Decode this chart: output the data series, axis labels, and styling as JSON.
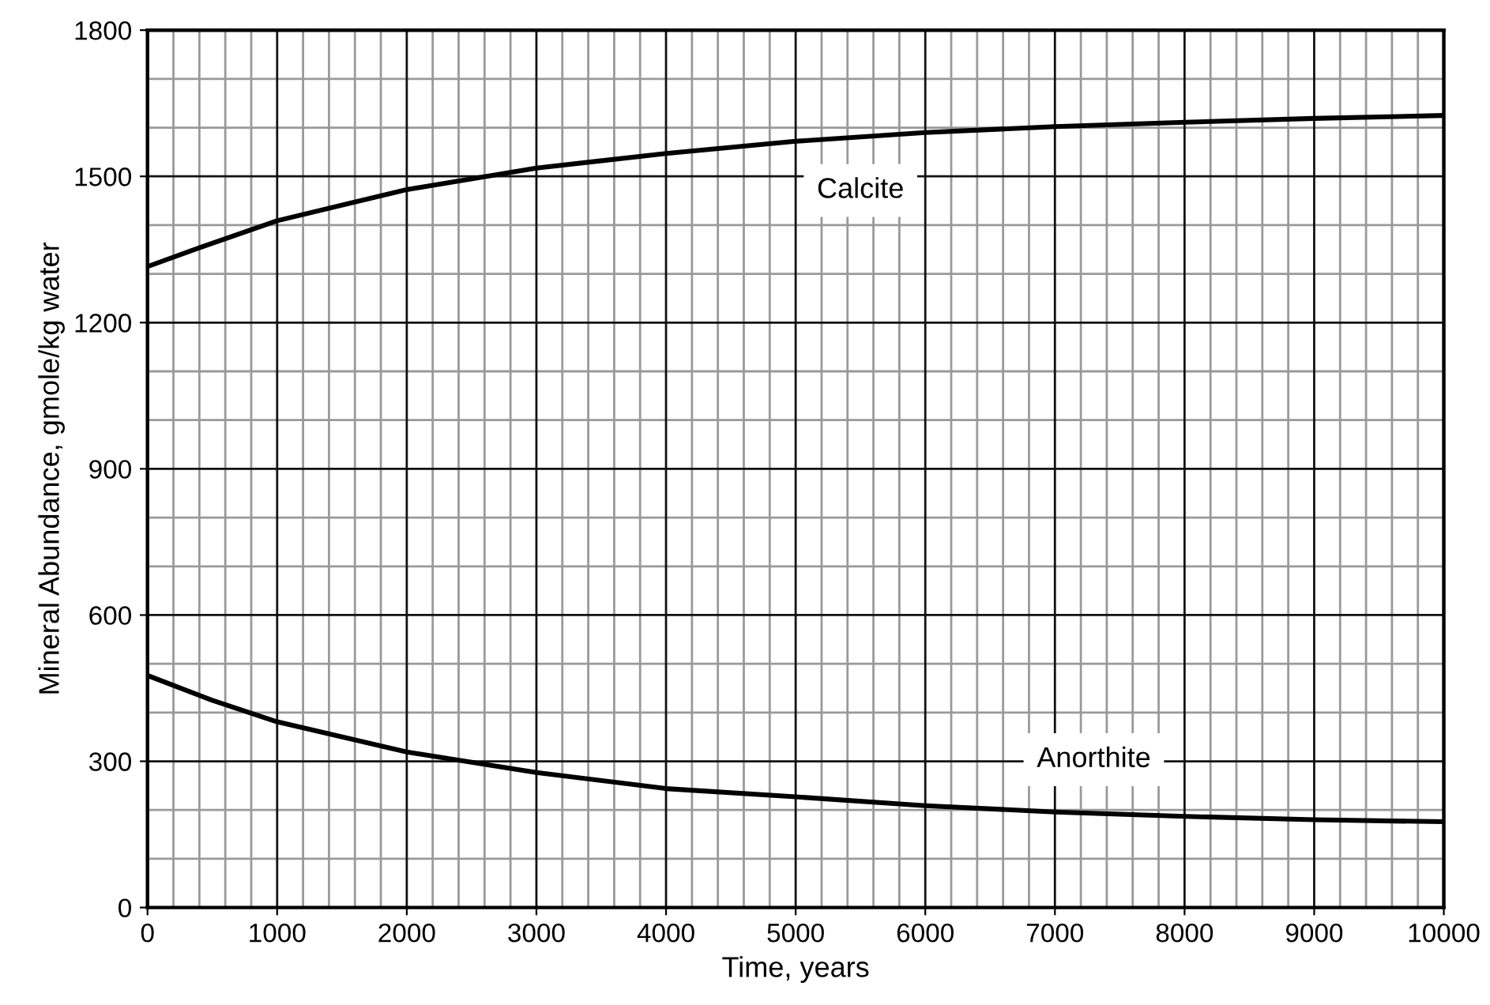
{
  "chart_data": {
    "type": "line",
    "xlabel": "Time, years",
    "ylabel": "Mineral Abundance, gmole/kg water",
    "xlim": [
      0,
      10000
    ],
    "ylim": [
      0,
      1800
    ],
    "xticks": [
      0,
      1000,
      2000,
      3000,
      4000,
      5000,
      6000,
      7000,
      8000,
      9000,
      10000
    ],
    "yticks": [
      0,
      300,
      600,
      900,
      1200,
      1500,
      1800
    ],
    "grid": true,
    "legend": false,
    "marker": "none",
    "line_style": "solid",
    "series": [
      {
        "name": "Calcite",
        "color": "#000000",
        "x": [
          0,
          500,
          1000,
          2000,
          3000,
          4000,
          5000,
          6000,
          7000,
          8000,
          9000,
          10000
        ],
        "values": [
          1315,
          1363,
          1409,
          1473,
          1517,
          1547,
          1572,
          1590,
          1602,
          1611,
          1619,
          1625
        ]
      },
      {
        "name": "Anorthite",
        "color": "#000000",
        "x": [
          0,
          500,
          1000,
          2000,
          3000,
          4000,
          5000,
          6000,
          7000,
          8000,
          9000,
          10000
        ],
        "values": [
          476,
          425,
          381,
          319,
          277,
          244,
          227,
          209,
          196,
          187,
          180,
          176
        ]
      }
    ]
  }
}
